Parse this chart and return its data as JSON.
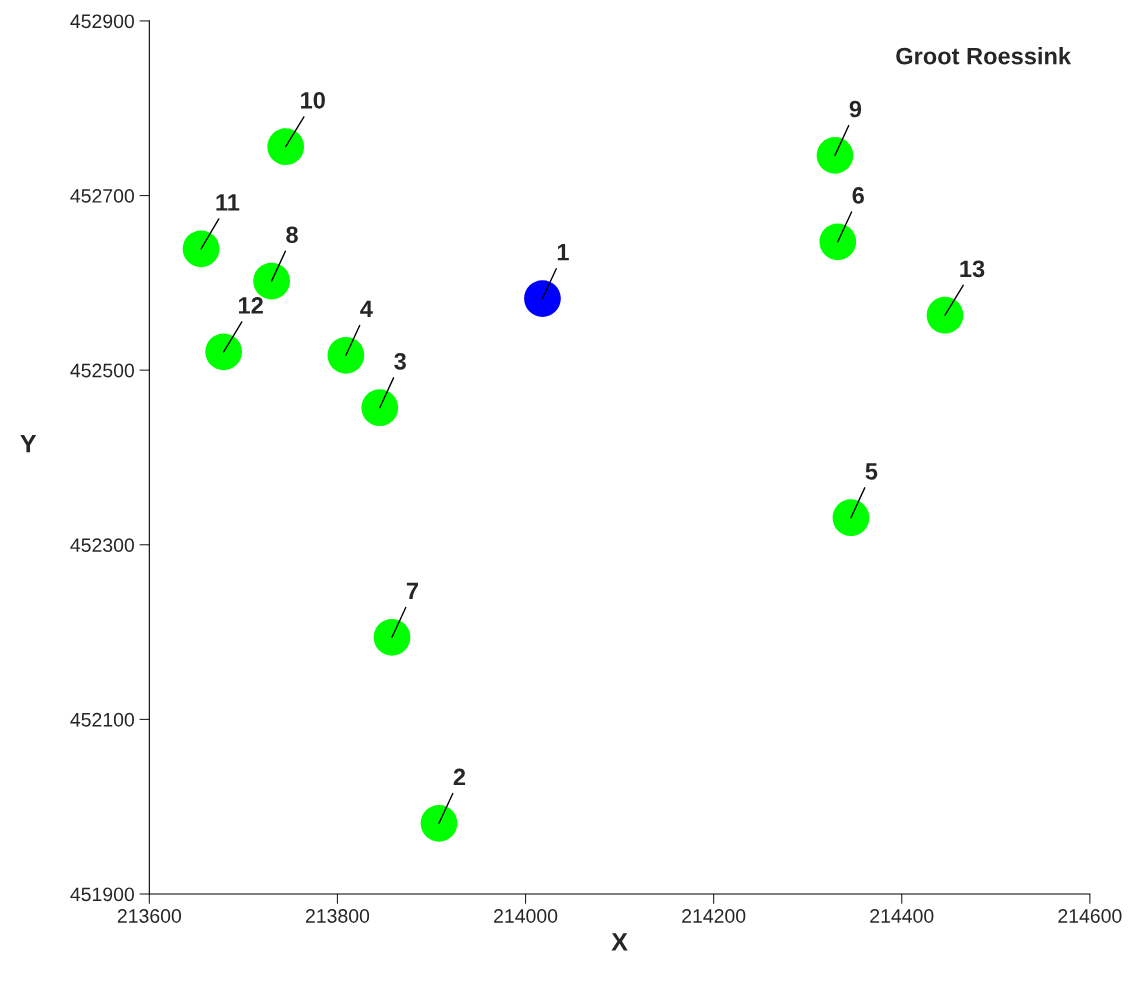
{
  "chart_data": {
    "type": "scatter",
    "title": "Groot Roessink",
    "xlabel": "X",
    "ylabel": "Y",
    "series": [
      {
        "color": "#0000ff",
        "x": [
          214018
        ],
        "values": [
          452582
        ]
      },
      {
        "color": "#00ff00",
        "x": [
          213908,
          213845,
          213809,
          214346,
          214332,
          213858,
          213730,
          214329,
          213745,
          213655,
          213679,
          214446
        ],
        "values": [
          451981,
          452457,
          452517,
          452331,
          452647,
          452194,
          452602,
          452746,
          452756,
          452639,
          452521,
          452563
        ]
      }
    ],
    "annotations": [
      {
        "text": "1",
        "x": 214018,
        "y": 452582
      },
      {
        "text": "2",
        "x": 213908,
        "y": 451981
      },
      {
        "text": "3",
        "x": 213845,
        "y": 452457
      },
      {
        "text": "4",
        "x": 213809,
        "y": 452517
      },
      {
        "text": "5",
        "x": 214346,
        "y": 452331
      },
      {
        "text": "6",
        "x": 214332,
        "y": 452647
      },
      {
        "text": "7",
        "x": 213858,
        "y": 452194
      },
      {
        "text": "8",
        "x": 213730,
        "y": 452602
      },
      {
        "text": "9",
        "x": 214329,
        "y": 452746
      },
      {
        "text": "10",
        "x": 213745,
        "y": 452756
      },
      {
        "text": "11",
        "x": 213655,
        "y": 452639
      },
      {
        "text": "12",
        "x": 213679,
        "y": 452521
      },
      {
        "text": "13",
        "x": 214446,
        "y": 452563
      }
    ],
    "xlim": [
      213600,
      214600
    ],
    "xticks": [
      213600,
      213800,
      214000,
      214200,
      214400,
      214600
    ],
    "ylim": [
      451900,
      452900
    ],
    "yticks": [
      451900,
      452100,
      452300,
      452500,
      452700,
      452900
    ],
    "grid": false,
    "legend": false,
    "marker": "circle"
  }
}
